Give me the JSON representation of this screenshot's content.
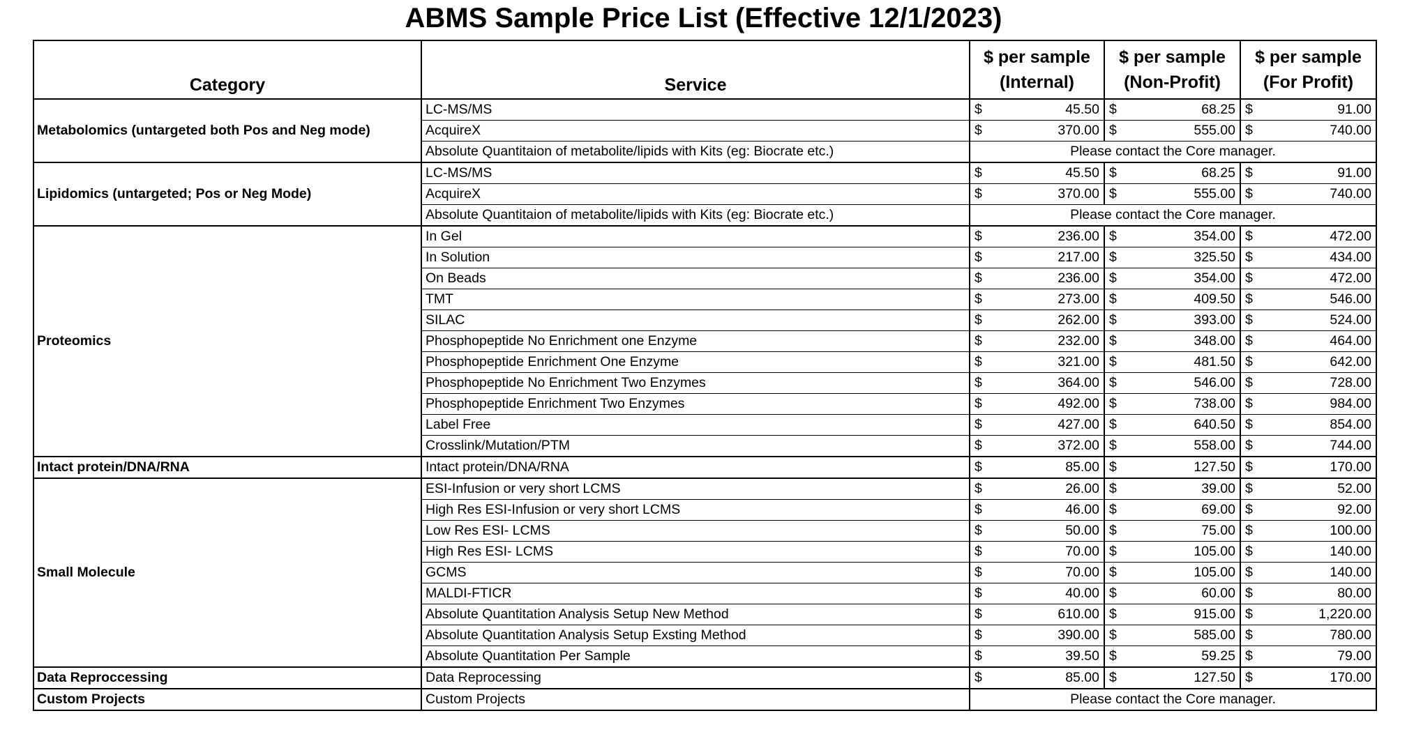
{
  "title": "ABMS Sample Price List (Effective 12/1/2023)",
  "headers": {
    "category": "Category",
    "service": "Service",
    "internal": [
      "$ per sample",
      "(Internal)"
    ],
    "non_profit": [
      "$ per sample",
      "(Non-Profit)"
    ],
    "for_profit": [
      "$ per sample",
      "(For Profit)"
    ]
  },
  "currency_symbol": "$",
  "groups": [
    {
      "category": "Metabolomics (untargeted both Pos and Neg mode)",
      "rows": [
        {
          "service": "LC-MS/MS",
          "internal": "45.50",
          "non_profit": "68.25",
          "for_profit": "91.00"
        },
        {
          "service": "AcquireX",
          "internal": "370.00",
          "non_profit": "555.00",
          "for_profit": "740.00"
        },
        {
          "service": "Absolute Quantitaion of metabolite/lipids with Kits (eg: Biocrate etc.)",
          "note": "Please contact the Core manager."
        }
      ]
    },
    {
      "category": "Lipidomics (untargeted; Pos or Neg Mode)",
      "rows": [
        {
          "service": "LC-MS/MS",
          "internal": "45.50",
          "non_profit": "68.25",
          "for_profit": "91.00"
        },
        {
          "service": "AcquireX",
          "internal": "370.00",
          "non_profit": "555.00",
          "for_profit": "740.00"
        },
        {
          "service": "Absolute Quantitaion of metabolite/lipids with Kits (eg: Biocrate etc.)",
          "note": "Please contact the Core manager."
        }
      ]
    },
    {
      "category": "Proteomics",
      "rows": [
        {
          "service": "In Gel",
          "internal": "236.00",
          "non_profit": "354.00",
          "for_profit": "472.00"
        },
        {
          "service": "In Solution",
          "internal": "217.00",
          "non_profit": "325.50",
          "for_profit": "434.00"
        },
        {
          "service": "On Beads",
          "internal": "236.00",
          "non_profit": "354.00",
          "for_profit": "472.00"
        },
        {
          "service": "TMT",
          "internal": "273.00",
          "non_profit": "409.50",
          "for_profit": "546.00"
        },
        {
          "service": "SILAC",
          "internal": "262.00",
          "non_profit": "393.00",
          "for_profit": "524.00"
        },
        {
          "service": "Phosphopeptide No Enrichment one Enzyme",
          "internal": "232.00",
          "non_profit": "348.00",
          "for_profit": "464.00"
        },
        {
          "service": "Phosphopeptide  Enrichment One Enzyme",
          "internal": "321.00",
          "non_profit": "481.50",
          "for_profit": "642.00"
        },
        {
          "service": "Phosphopeptide No Enrichment Two Enzymes",
          "internal": "364.00",
          "non_profit": "546.00",
          "for_profit": "728.00"
        },
        {
          "service": "Phosphopeptide  Enrichment Two Enzymes",
          "internal": "492.00",
          "non_profit": "738.00",
          "for_profit": "984.00"
        },
        {
          "service": "Label Free",
          "internal": "427.00",
          "non_profit": "640.50",
          "for_profit": "854.00"
        },
        {
          "service": "Crosslink/Mutation/PTM",
          "internal": "372.00",
          "non_profit": "558.00",
          "for_profit": "744.00"
        }
      ]
    },
    {
      "category": "Intact protein/DNA/RNA",
      "rows": [
        {
          "service": "Intact protein/DNA/RNA",
          "internal": "85.00",
          "non_profit": "127.50",
          "for_profit": "170.00"
        }
      ]
    },
    {
      "category": "Small Molecule",
      "rows": [
        {
          "service": "ESI-Infusion or very short LCMS",
          "internal": "26.00",
          "non_profit": "39.00",
          "for_profit": "52.00"
        },
        {
          "service": "High Res ESI-Infusion or very short LCMS",
          "internal": "46.00",
          "non_profit": "69.00",
          "for_profit": "92.00"
        },
        {
          "service": "Low Res ESI- LCMS",
          "internal": "50.00",
          "non_profit": "75.00",
          "for_profit": "100.00"
        },
        {
          "service": "High Res ESI- LCMS",
          "internal": "70.00",
          "non_profit": "105.00",
          "for_profit": "140.00"
        },
        {
          "service": "GCMS",
          "internal": "70.00",
          "non_profit": "105.00",
          "for_profit": "140.00"
        },
        {
          "service": "MALDI-FTICR",
          "internal": "40.00",
          "non_profit": "60.00",
          "for_profit": "80.00"
        },
        {
          "service": "Absolute Quantitation Analysis Setup New Method",
          "internal": "610.00",
          "non_profit": "915.00",
          "for_profit": "1,220.00"
        },
        {
          "service": "Absolute Quantitation Analysis Setup Exsting Method",
          "internal": "390.00",
          "non_profit": "585.00",
          "for_profit": "780.00"
        },
        {
          "service": "Absolute Quantitation Per Sample",
          "internal": "39.50",
          "non_profit": "59.25",
          "for_profit": "79.00"
        }
      ]
    },
    {
      "category": "Data Reproccessing",
      "rows": [
        {
          "service": "Data Reprocessing",
          "internal": "85.00",
          "non_profit": "127.50",
          "for_profit": "170.00"
        }
      ]
    },
    {
      "category": "Custom Projects",
      "rows": [
        {
          "service": "Custom Projects",
          "note": "Please contact the Core manager."
        }
      ]
    }
  ]
}
